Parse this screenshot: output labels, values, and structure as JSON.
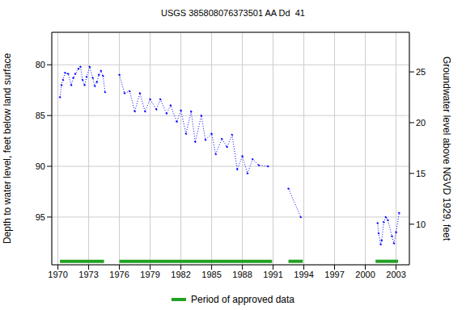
{
  "chart_data": {
    "type": "line",
    "title": "USGS 385808076373501 AA Dd  41",
    "y_label": "Depth to water level, feet below land surface",
    "y2_label": "Groundwater level above NGVD 1929, feet",
    "x": [
      1970.2,
      1970.35,
      1970.5,
      1970.7,
      1971.0,
      1971.3,
      1971.5,
      1971.7,
      1972.0,
      1972.2,
      1972.4,
      1972.6,
      1972.8,
      1973.1,
      1973.4,
      1973.6,
      1973.8,
      1974.0,
      1974.2,
      1974.4,
      1974.6,
      1975.3,
      1976.0,
      1976.5,
      1977.0,
      1977.5,
      1978.0,
      1978.5,
      1979.0,
      1979.6,
      1980.0,
      1980.6,
      1981.0,
      1981.6,
      1982.0,
      1982.5,
      1983.0,
      1983.4,
      1984.0,
      1984.4,
      1985.0,
      1985.4,
      1986.0,
      1986.5,
      1987.0,
      1987.5,
      1988.0,
      1988.5,
      1989.0,
      1989.6,
      1990.5,
      1991.5,
      1992.5,
      1993.7,
      1997.5,
      2001.2,
      2001.3,
      2001.5,
      2001.6,
      2001.8,
      2002.0,
      2002.2,
      2002.6,
      2002.8,
      2003.0,
      2003.3
    ],
    "values": [
      83.2,
      82.0,
      81.5,
      80.8,
      80.9,
      82.0,
      81.3,
      80.9,
      80.4,
      80.2,
      81.5,
      82.0,
      81.2,
      80.2,
      81.3,
      82.1,
      81.7,
      81.0,
      80.6,
      81.1,
      82.7,
      null,
      81.0,
      82.8,
      82.6,
      84.6,
      82.8,
      84.6,
      83.4,
      84.4,
      83.4,
      84.8,
      84.0,
      85.6,
      84.5,
      86.8,
      84.6,
      87.6,
      85.0,
      87.4,
      86.8,
      88.8,
      87.3,
      88.1,
      86.9,
      90.3,
      89.0,
      90.7,
      89.3,
      89.9,
      90.0,
      null,
      92.2,
      95.0,
      null,
      95.6,
      96.6,
      97.7,
      97.3,
      95.5,
      95.0,
      95.3,
      96.9,
      97.6,
      96.5,
      94.6
    ],
    "color": "#0000ff",
    "marker": "dot",
    "line_style": "dotted",
    "xlim": [
      1969.4,
      2004.3
    ],
    "xticks": [
      1970,
      1973,
      1976,
      1979,
      1982,
      1985,
      1988,
      1991,
      1994,
      1997,
      2000,
      2003
    ],
    "ylim": [
      99.7,
      76.8
    ],
    "yticks": [
      80,
      85,
      90,
      95
    ],
    "y2lim": [
      6.0,
      28.9
    ],
    "y2ticks": [
      10,
      15,
      20,
      25
    ],
    "grid": true,
    "legend": "bottom",
    "approved_periods": {
      "name": "Period of approved data",
      "color": "#22a022",
      "ranges": [
        [
          1970.2,
          1974.5
        ],
        [
          1976.0,
          1990.9
        ],
        [
          1992.5,
          1993.9
        ],
        [
          2001.0,
          2003.2
        ]
      ]
    }
  }
}
